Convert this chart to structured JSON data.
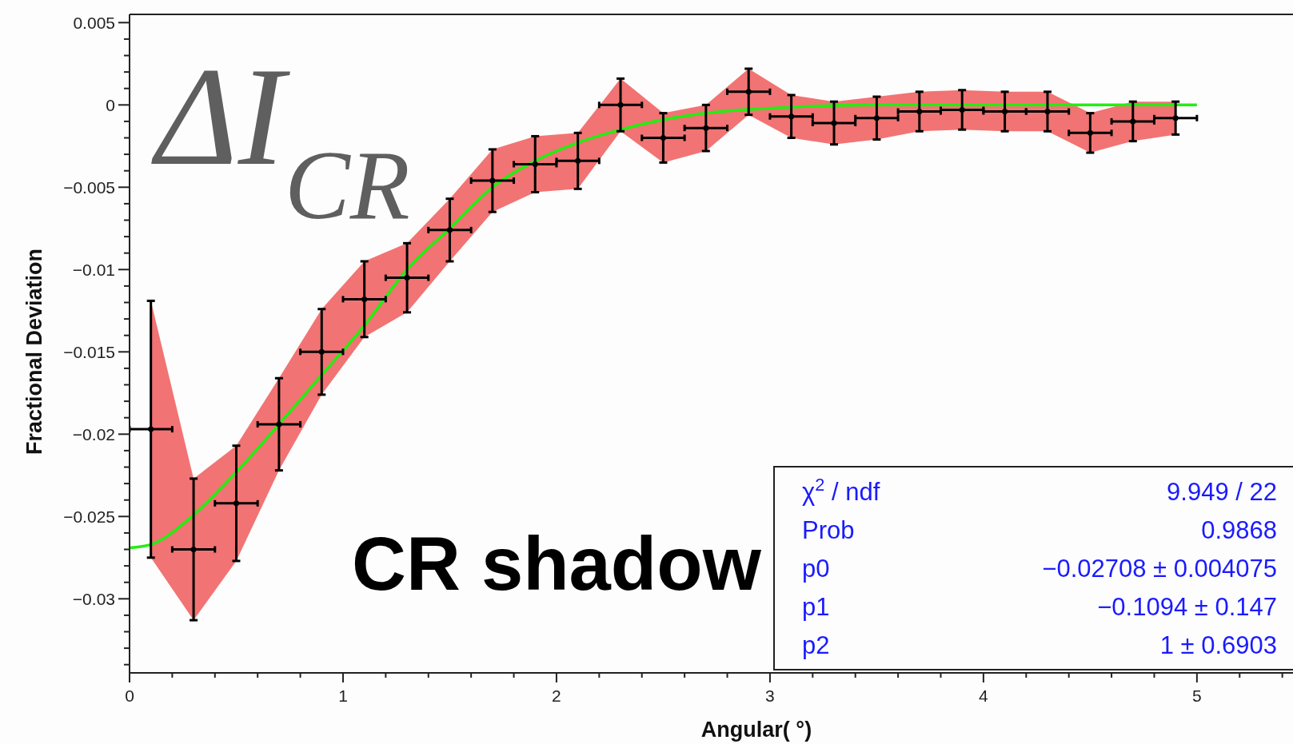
{
  "chart_data": {
    "type": "scatter",
    "xlabel": "Angular( °)",
    "ylabel": "Fractional Deviation",
    "xlim": [
      0,
      5.45
    ],
    "ylim": [
      -0.0345,
      0.0055
    ],
    "xticks": [
      0,
      1,
      2,
      3,
      4,
      5,
      {
        "value": 0.2,
        "label": null
      },
      {
        "value": 0.4,
        "label": null
      },
      {
        "value": 0.6,
        "label": null
      },
      {
        "value": 0.8,
        "label": null
      },
      {
        "value": 1.2,
        "label": null
      },
      {
        "value": 1.4,
        "label": null
      },
      {
        "value": 1.6,
        "label": null
      },
      {
        "value": 1.8,
        "label": null
      },
      {
        "value": 2.2,
        "label": null
      },
      {
        "value": 2.4,
        "label": null
      },
      {
        "value": 2.6,
        "label": null
      },
      {
        "value": 2.8,
        "label": null
      },
      {
        "value": 3.2,
        "label": null
      },
      {
        "value": 3.4,
        "label": null
      },
      {
        "value": 3.6,
        "label": null
      },
      {
        "value": 3.8,
        "label": null
      },
      {
        "value": 4.2,
        "label": null
      },
      {
        "value": 4.4,
        "label": null
      },
      {
        "value": 4.6,
        "label": null
      },
      {
        "value": 4.8,
        "label": null
      },
      {
        "value": 5.2,
        "label": null
      },
      {
        "value": 5.4,
        "label": null
      }
    ],
    "yticks": [
      {
        "value": -0.03,
        "label": "−0.03"
      },
      {
        "value": -0.025,
        "label": "−0.025"
      },
      {
        "value": -0.02,
        "label": "−0.02"
      },
      {
        "value": -0.015,
        "label": "−0.015"
      },
      {
        "value": -0.01,
        "label": "−0.01"
      },
      {
        "value": -0.005,
        "label": "−0.005"
      },
      0,
      0.005,
      {
        "value": -0.034,
        "label": null
      },
      {
        "value": -0.033,
        "label": null
      },
      {
        "value": -0.032,
        "label": null
      },
      {
        "value": -0.031,
        "label": null
      },
      {
        "value": -0.029,
        "label": null
      },
      {
        "value": -0.028,
        "label": null
      },
      {
        "value": -0.027,
        "label": null
      },
      {
        "value": -0.026,
        "label": null
      },
      {
        "value": -0.024,
        "label": null
      },
      {
        "value": -0.023,
        "label": null
      },
      {
        "value": -0.022,
        "label": null
      },
      {
        "value": -0.021,
        "label": null
      },
      {
        "value": -0.019,
        "label": null
      },
      {
        "value": -0.018,
        "label": null
      },
      {
        "value": -0.017,
        "label": null
      },
      {
        "value": -0.016,
        "label": null
      },
      {
        "value": -0.014,
        "label": null
      },
      {
        "value": -0.013,
        "label": null
      },
      {
        "value": -0.012,
        "label": null
      },
      {
        "value": -0.011,
        "label": null
      },
      {
        "value": -0.009,
        "label": null
      },
      {
        "value": -0.008,
        "label": null
      },
      {
        "value": -0.007,
        "label": null
      },
      {
        "value": -0.006,
        "label": null
      },
      {
        "value": -0.004,
        "label": null
      },
      {
        "value": -0.003,
        "label": null
      },
      {
        "value": -0.002,
        "label": null
      },
      {
        "value": -0.001,
        "label": null
      },
      {
        "value": 0.001,
        "label": null
      },
      {
        "value": 0.002,
        "label": null
      },
      {
        "value": 0.003,
        "label": null
      },
      {
        "value": 0.004,
        "label": null
      }
    ],
    "series": [
      {
        "color": "#000000",
        "marker": "circle",
        "x": [
          0.1,
          0.3,
          0.5,
          0.7,
          0.9,
          1.1,
          1.3,
          1.5,
          1.7,
          1.9,
          2.1,
          2.3,
          2.5,
          2.7,
          2.9,
          3.1,
          3.3,
          3.5,
          3.7,
          3.9,
          4.1,
          4.3,
          4.5,
          4.7,
          4.9
        ],
        "values": [
          -0.0197,
          -0.027,
          -0.0242,
          -0.0194,
          -0.015,
          -0.0118,
          -0.0105,
          -0.0076,
          -0.0046,
          -0.0036,
          -0.0034,
          0.0,
          -0.002,
          -0.0014,
          0.0008,
          -0.0007,
          -0.0011,
          -0.0008,
          -0.0004,
          -0.0003,
          -0.0004,
          -0.0004,
          -0.0017,
          -0.001,
          -0.0008
        ],
        "errors": [
          0.0078,
          0.0043,
          0.0035,
          0.0028,
          0.0026,
          0.0023,
          0.0021,
          0.0019,
          0.0019,
          0.0017,
          0.0017,
          0.0016,
          0.0015,
          0.0014,
          0.0014,
          0.0013,
          0.0013,
          0.0013,
          0.0012,
          0.0012,
          0.0012,
          0.0012,
          0.0012,
          0.0012,
          0.001
        ],
        "xerrors": [
          0.1,
          0.1,
          0.1,
          0.1,
          0.1,
          0.1,
          0.1,
          0.1,
          0.1,
          0.1,
          0.1,
          0.1,
          0.1,
          0.1,
          0.1,
          0.1,
          0.1,
          0.1,
          0.1,
          0.1,
          0.1,
          0.1,
          0.1,
          0.1,
          0.1
        ],
        "lower": [
          -0.0275,
          -0.0313,
          -0.0277,
          -0.0222,
          -0.0176,
          -0.0141,
          -0.0126,
          -0.0095,
          -0.0065,
          -0.0053,
          -0.0051,
          -0.0016,
          -0.0035,
          -0.0028,
          -0.0006,
          -0.002,
          -0.0024,
          -0.0021,
          -0.0016,
          -0.0015,
          -0.0016,
          -0.0016,
          -0.0029,
          -0.0022,
          -0.0018
        ],
        "upper": [
          -0.0119,
          -0.0227,
          -0.0207,
          -0.0166,
          -0.0124,
          -0.0095,
          -0.0084,
          -0.0057,
          -0.0027,
          -0.0019,
          -0.0017,
          0.0016,
          -0.0005,
          0.0,
          0.0022,
          0.0006,
          0.0002,
          0.0005,
          0.0008,
          0.0009,
          0.0008,
          0.0008,
          -0.0005,
          0.0002,
          0.0002
        ]
      },
      {
        "type": "line",
        "color": "#22ee11",
        "x": [
          0,
          0.1,
          0.3,
          0.5,
          0.7,
          0.9,
          1.1,
          1.3,
          1.5,
          1.7,
          1.9,
          2.1,
          2.3,
          2.5,
          2.7,
          3.0,
          3.5,
          4.0,
          4.5,
          5.0
        ],
        "values": [
          -0.0269,
          -0.0267,
          -0.0249,
          -0.0223,
          -0.0194,
          -0.0164,
          -0.0134,
          -0.01,
          -0.0075,
          -0.005,
          -0.0034,
          -0.0023,
          -0.0015,
          -0.0009,
          -0.0005,
          -0.0002,
          0,
          0,
          0,
          0
        ]
      }
    ],
    "annotations": [
      "ΔI$_{CR}$",
      "CR shadow",
      "χ$^{2}$ / ndf",
      "9.949 / 22",
      "Prob",
      "0.9868",
      "p0",
      "−0.02708 ± 0.004075",
      "p1",
      "−0.1094 ± 0.147",
      "p2",
      "1 ± 0.6903"
    ]
  }
}
